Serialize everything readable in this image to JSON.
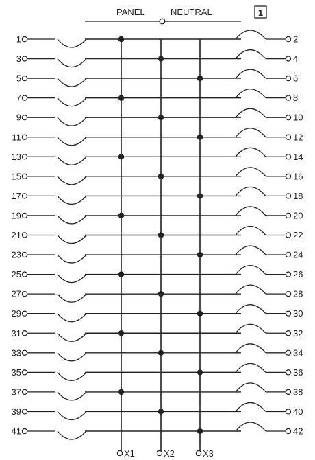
{
  "header": {
    "panel_label": "PANEL",
    "neutral_label": "NEUTRAL",
    "sheet_number": "1"
  },
  "left_circuits": [
    "1",
    "3",
    "5",
    "7",
    "9",
    "11",
    "13",
    "15",
    "17",
    "19",
    "21",
    "23",
    "25",
    "27",
    "29",
    "31",
    "33",
    "35",
    "37",
    "39",
    "41"
  ],
  "right_circuits": [
    "2",
    "4",
    "6",
    "8",
    "10",
    "12",
    "14",
    "16",
    "18",
    "20",
    "22",
    "24",
    "26",
    "28",
    "30",
    "32",
    "34",
    "36",
    "38",
    "40",
    "42"
  ],
  "phases": [
    {
      "label": "X1"
    },
    {
      "label": "X2"
    },
    {
      "label": "X3"
    }
  ],
  "colors": {
    "line": "#222222",
    "paper": "#ffffff"
  }
}
